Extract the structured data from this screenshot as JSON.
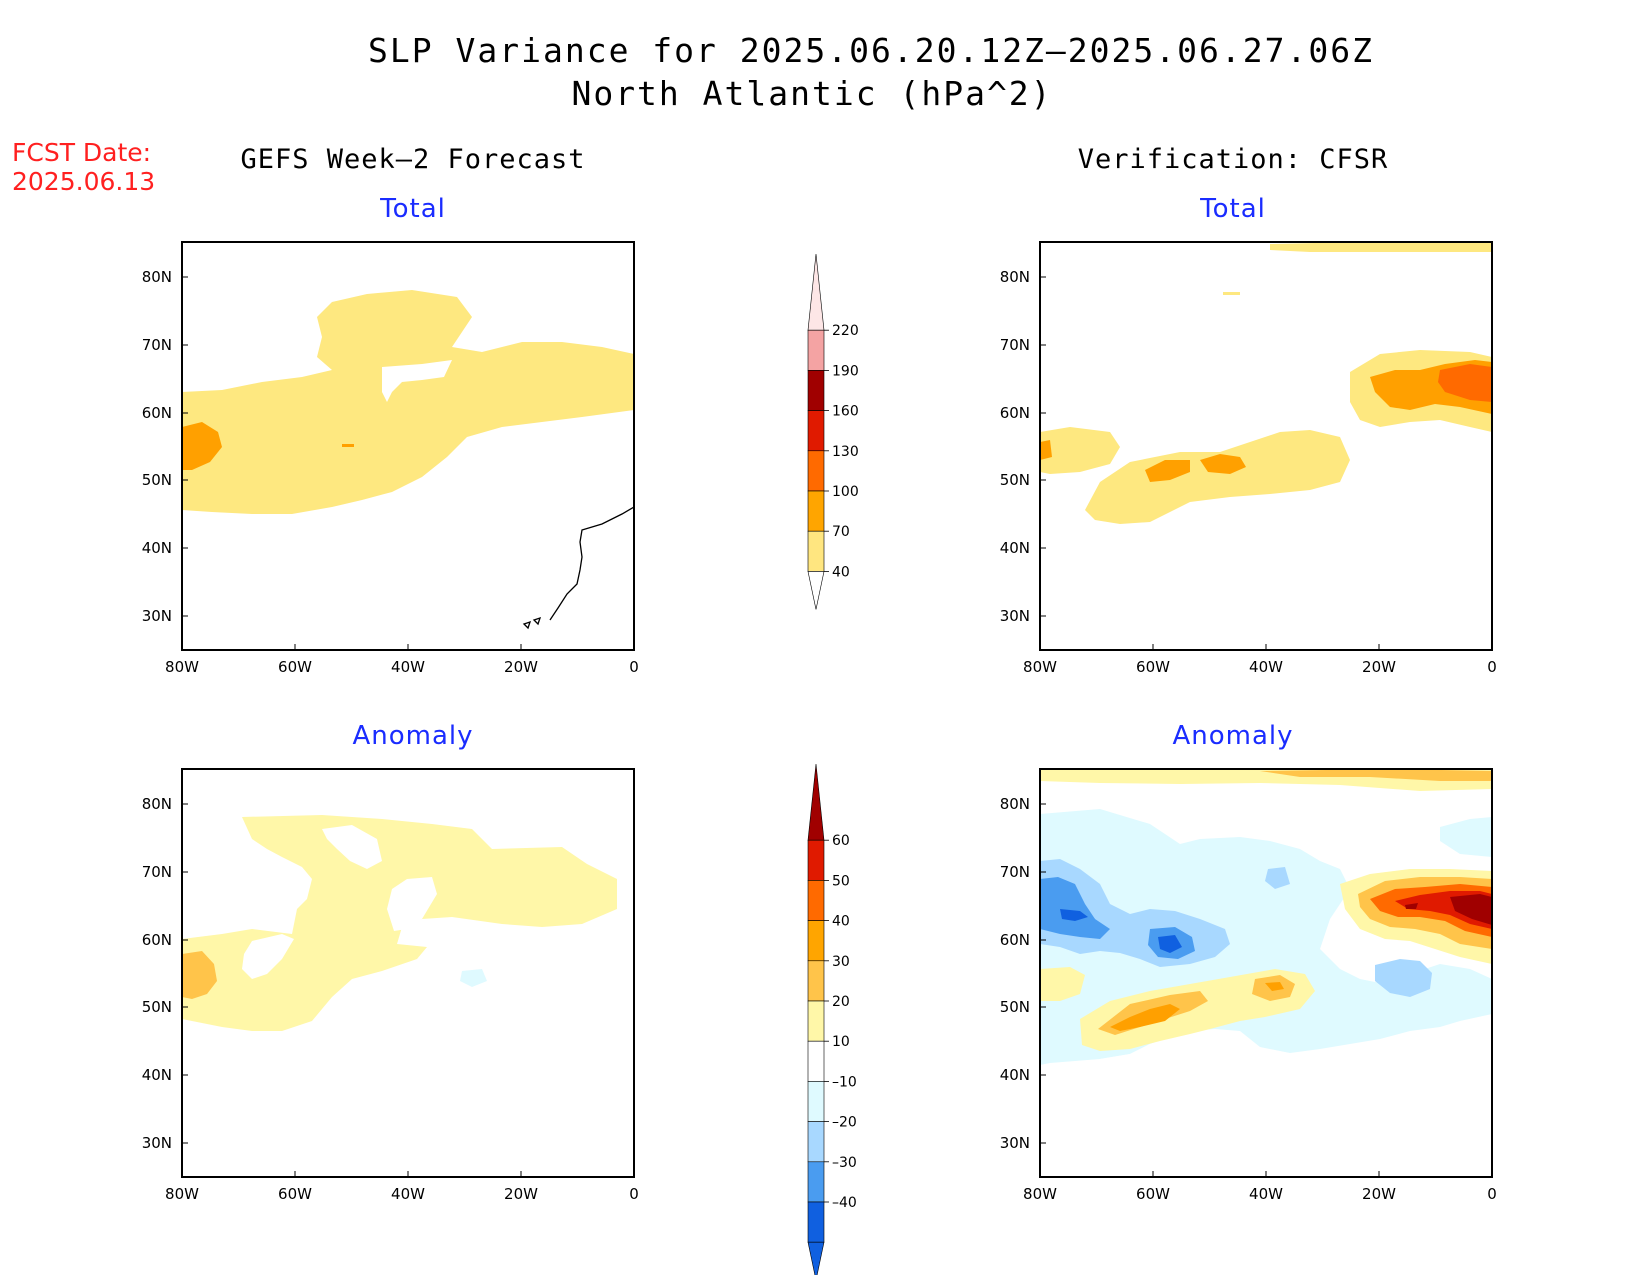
{
  "title": {
    "line1": "SLP Variance for 2025.06.20.12Z–2025.06.27.06Z",
    "line2": "North Atlantic (hPa^2)"
  },
  "fcst_date": {
    "label": "FCST Date:",
    "value": "2025.06.13"
  },
  "columns": {
    "left": "GEFS Week–2 Forecast",
    "right": "Verification: CFSR"
  },
  "panels": [
    {
      "id": "forecast-total",
      "subtitle": "Total"
    },
    {
      "id": "verification-total",
      "subtitle": "Total"
    },
    {
      "id": "forecast-anomaly",
      "subtitle": "Anomaly"
    },
    {
      "id": "verification-anomaly",
      "subtitle": "Anomaly"
    }
  ],
  "axes": {
    "lat_ticks": [
      "80N",
      "70N",
      "60N",
      "50N",
      "40N",
      "30N"
    ],
    "lon_ticks": [
      "80W",
      "60W",
      "40W",
      "20W",
      "0"
    ]
  },
  "colorbars": {
    "total": {
      "labels": [
        "220",
        "190",
        "160",
        "130",
        "100",
        "70",
        "40"
      ],
      "colors": [
        "#fde6e6",
        "#f4a3a3",
        "#a00000",
        "#e01a00",
        "#ff6a00",
        "#ffa500",
        "#ffe680"
      ]
    },
    "anomaly": {
      "labels": [
        "60",
        "50",
        "40",
        "30",
        "20",
        "10",
        "–10",
        "–20",
        "–30",
        "–40"
      ],
      "colors": [
        "#a00000",
        "#e01a00",
        "#ff6a00",
        "#ffa500",
        "#ffc44a",
        "#fff7a8",
        "#ffffff",
        "#dffaff",
        "#a8d8ff",
        "#4a9cf0",
        "#1060e0"
      ]
    }
  },
  "chart_data": [
    {
      "type": "heatmap",
      "title": "Total",
      "panel": "GEFS Week–2 Forecast",
      "xlim": [
        "80W",
        "0"
      ],
      "ylim": [
        "25N",
        "85N"
      ],
      "contour_levels": [
        40,
        70,
        100,
        130,
        160,
        190,
        220
      ],
      "features": [
        {
          "region": "broad band 45N–68N, 80W–0",
          "level": "40–70"
        },
        {
          "region": "Labrador coast ~55N 78W",
          "level": "70–100"
        }
      ]
    },
    {
      "type": "heatmap",
      "title": "Total",
      "panel": "Verification: CFSR",
      "xlim": [
        "80W",
        "0"
      ],
      "ylim": [
        "25N",
        "85N"
      ],
      "contour_levels": [
        40,
        70,
        100,
        130,
        160,
        190,
        220
      ],
      "features": [
        {
          "region": "Iceland to UK ~57N–67N, 25W–0",
          "level": "100–130"
        },
        {
          "region": "Newfoundland ~50N–53N, 55W",
          "level": "70–100"
        },
        {
          "region": "mid-Atlantic ~51N 38W",
          "level": "70–100"
        }
      ]
    },
    {
      "type": "heatmap",
      "title": "Anomaly",
      "panel": "GEFS Week–2 Forecast",
      "xlim": [
        "80W",
        "0"
      ],
      "ylim": [
        "25N",
        "85N"
      ],
      "contour_levels": [
        -40,
        -30,
        -20,
        -10,
        10,
        20,
        30,
        40,
        50,
        60
      ],
      "features": [
        {
          "region": "Labrador coast ~54N 78W",
          "level": "20–30"
        },
        {
          "region": "broad region 45N–78N",
          "level": "10–20"
        }
      ]
    },
    {
      "type": "heatmap",
      "title": "Anomaly",
      "panel": "Verification: CFSR",
      "xlim": [
        "80W",
        "0"
      ],
      "ylim": [
        "25N",
        "85N"
      ],
      "contour_levels": [
        -40,
        -30,
        -20,
        -10,
        10,
        20,
        30,
        40,
        50,
        60
      ],
      "features": [
        {
          "region": "east of Iceland ~62N 5W",
          "level": "50–60+"
        },
        {
          "region": "Labrador Sea ~58N 60W",
          "level": "-30 to -40"
        },
        {
          "region": "Newfoundland ~51N 62W",
          "level": "30–40"
        },
        {
          "region": "west of Ireland ~54N 20W",
          "level": "-20 to -30"
        }
      ]
    }
  ]
}
